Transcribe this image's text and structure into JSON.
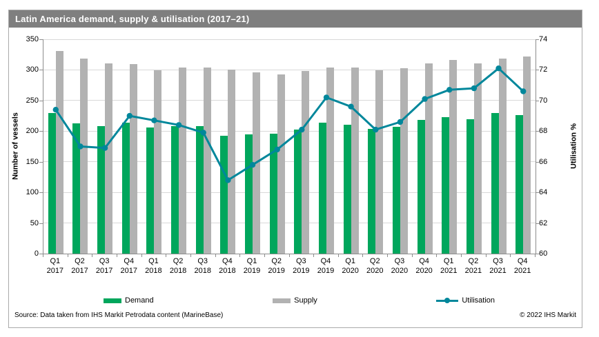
{
  "title": "Latin America demand, supply & utilisation (2017–21)",
  "footer": {
    "source": "Source: Data taken from IHS Markit Petrodata content (MarineBase)",
    "copyright": "© 2022 IHS Markit"
  },
  "colors": {
    "title_bar": "#7f7f7f",
    "demand": "#00a65c",
    "supply": "#b2b2b2",
    "utilisation": "#00879b",
    "grid": "#d8d8d8",
    "axis": "#8c8c8c"
  },
  "chart_data": {
    "type": "bar+line combo",
    "title": "Latin America demand, supply & utilisation (2017–21)",
    "categories": [
      "Q1 2017",
      "Q2 2017",
      "Q3 2017",
      "Q4 2017",
      "Q1 2018",
      "Q2 2018",
      "Q3 2018",
      "Q4 2018",
      "Q1 2019",
      "Q2 2019",
      "Q3 2019",
      "Q4 2019",
      "Q1 2020",
      "Q2 2020",
      "Q3 2020",
      "Q4 2020",
      "Q1 2021",
      "Q2 2021",
      "Q3 2021",
      "Q4 2021"
    ],
    "series": [
      {
        "name": "Demand",
        "type": "bar",
        "axis": "left",
        "color": "#00a65c",
        "values": [
          230,
          213,
          208,
          214,
          206,
          208,
          208,
          193,
          195,
          196,
          203,
          214,
          211,
          204,
          207,
          218,
          223,
          220,
          230,
          226
        ]
      },
      {
        "name": "Supply",
        "type": "bar",
        "axis": "left",
        "color": "#b2b2b2",
        "values": [
          331,
          319,
          311,
          310,
          299,
          304,
          304,
          300,
          296,
          293,
          298,
          304,
          304,
          299,
          303,
          311,
          316,
          311,
          319,
          322
        ]
      },
      {
        "name": "Utilisation",
        "type": "line",
        "axis": "right",
        "color": "#00879b",
        "values": [
          69.4,
          67.0,
          66.9,
          69.0,
          68.7,
          68.4,
          67.9,
          64.8,
          65.8,
          66.8,
          68.1,
          70.2,
          69.6,
          68.1,
          68.6,
          70.1,
          70.7,
          70.8,
          72.1,
          70.6
        ]
      }
    ],
    "left_axis": {
      "label": "Number of vessels",
      "min": 0,
      "max": 350,
      "step": 50
    },
    "right_axis": {
      "label": "Utilisation %",
      "min": 60,
      "max": 74,
      "step": 2
    },
    "legend": [
      "Demand",
      "Supply",
      "Utilisation"
    ],
    "grid": "horizontal",
    "legend_position": "bottom"
  }
}
